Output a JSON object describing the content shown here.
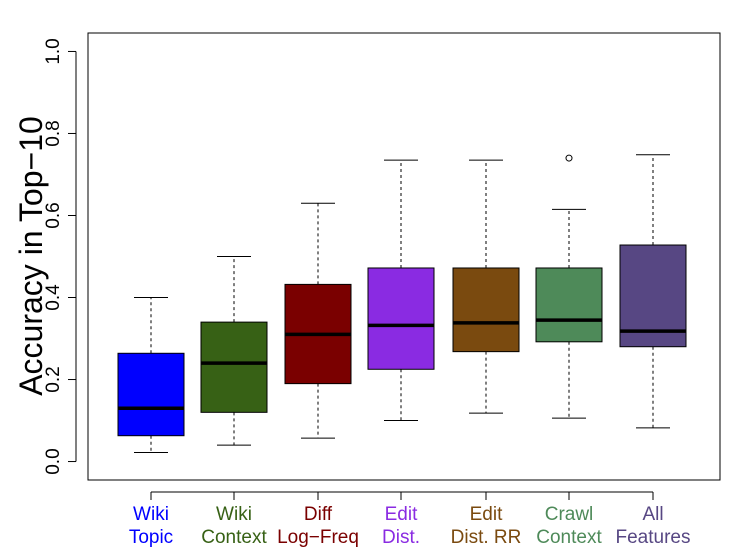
{
  "chart_data": {
    "type": "box",
    "title": "",
    "xlabel": "",
    "ylabel": "Accuracy in Top−10",
    "ylim": [
      -0.045,
      1.045
    ],
    "yticks": [
      {
        "value": 0.0,
        "label": "0.0"
      },
      {
        "value": 0.2,
        "label": "0.2"
      },
      {
        "value": 0.4,
        "label": "0.4"
      },
      {
        "value": 0.6,
        "label": "0.6"
      },
      {
        "value": 0.8,
        "label": "0.8"
      },
      {
        "value": 1.0,
        "label": "1.0"
      }
    ],
    "grid": false,
    "legend": "none",
    "boxes": [
      {
        "label": [
          "Wiki",
          "Topic"
        ],
        "color": "#0000ff",
        "whisker_low": 0.022,
        "q1": 0.063,
        "median": 0.13,
        "q3": 0.264,
        "whisker_high": 0.4,
        "outliers": []
      },
      {
        "label": [
          "Wiki",
          "Context"
        ],
        "color": "#376115",
        "whisker_low": 0.04,
        "q1": 0.12,
        "median": 0.24,
        "q3": 0.34,
        "whisker_high": 0.5,
        "outliers": []
      },
      {
        "label": [
          "Diff",
          "Log−Freq"
        ],
        "color": "#7a0000",
        "whisker_low": 0.057,
        "q1": 0.19,
        "median": 0.31,
        "q3": 0.432,
        "whisker_high": 0.63,
        "outliers": []
      },
      {
        "label": [
          "Edit",
          "Dist."
        ],
        "color": "#8a2be2",
        "whisker_low": 0.1,
        "q1": 0.225,
        "median": 0.332,
        "q3": 0.472,
        "whisker_high": 0.735,
        "outliers": []
      },
      {
        "label": [
          "Edit",
          "Dist. RR"
        ],
        "color": "#7a4a0f",
        "whisker_low": 0.118,
        "q1": 0.268,
        "median": 0.338,
        "q3": 0.472,
        "whisker_high": 0.735,
        "outliers": []
      },
      {
        "label": [
          "Crawl",
          "Context"
        ],
        "color": "#4e8a59",
        "whisker_low": 0.106,
        "q1": 0.292,
        "median": 0.345,
        "q3": 0.472,
        "whisker_high": 0.615,
        "outliers": [
          0.74
        ]
      },
      {
        "label": [
          "All",
          "Features"
        ],
        "color": "#574783",
        "whisker_low": 0.082,
        "q1": 0.28,
        "median": 0.318,
        "q3": 0.528,
        "whisker_high": 0.748,
        "outliers": []
      }
    ]
  }
}
